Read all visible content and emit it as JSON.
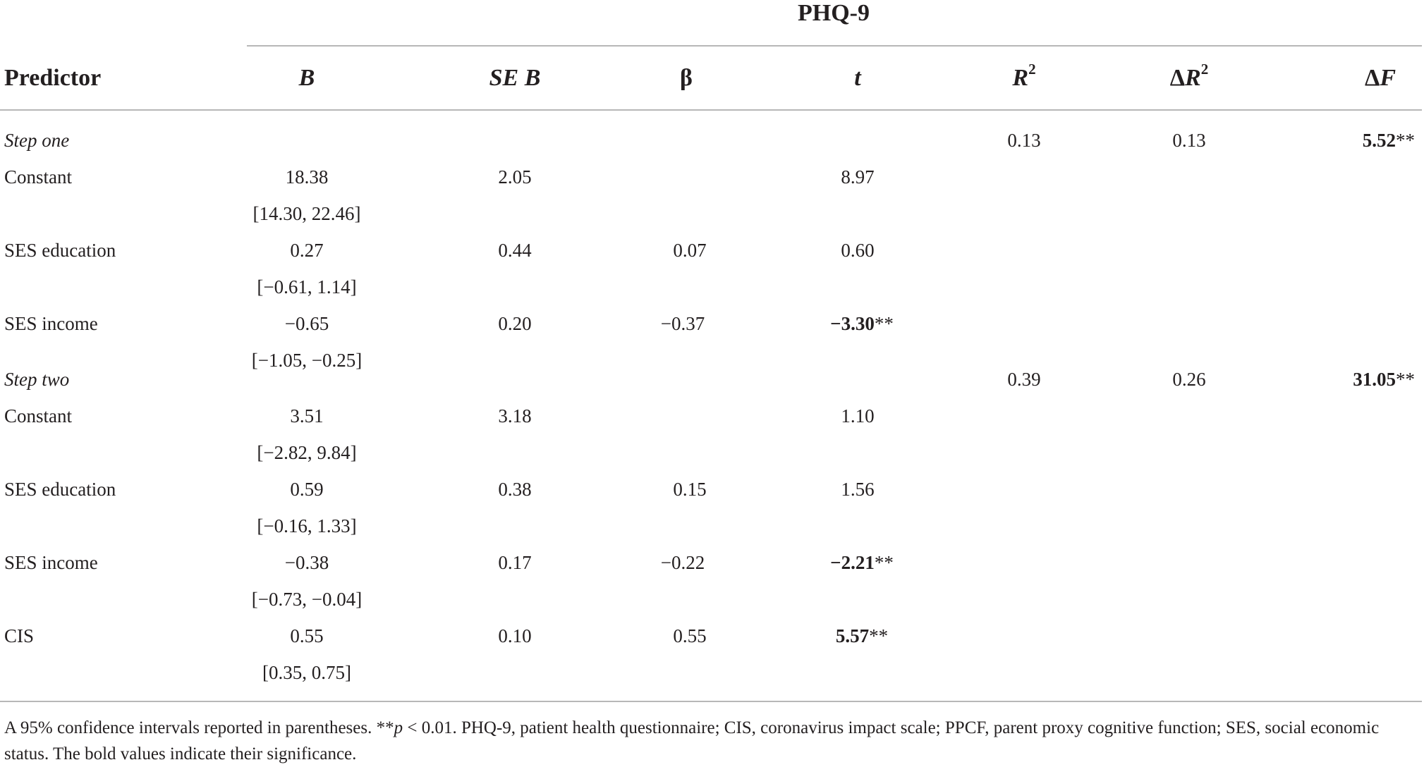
{
  "table": {
    "group_header": "PHQ-9",
    "columns": {
      "predictor": "Predictor",
      "B": "B",
      "seB": "SE B",
      "beta": "β",
      "t": "t",
      "r2_base": "R",
      "r2_sup": "2",
      "dr2_delta": "Δ",
      "dr2_base": "R",
      "dr2_sup": "2",
      "df_delta": "Δ",
      "df_base": "F"
    },
    "rows": [
      {
        "predictor": "Step one",
        "r2": "0.13",
        "dr2": "0.13",
        "df": "5.52",
        "df_sig": "**"
      },
      {
        "predictor": "Constant",
        "B": "18.38",
        "seB": "2.05",
        "t": "8.97"
      },
      {
        "B_ci": "[14.30, 22.46]"
      },
      {
        "predictor": "SES education",
        "B": "0.27",
        "seB": "0.44",
        "beta": "0.07",
        "t": "0.60"
      },
      {
        "B_ci": "[−0.61, 1.14]"
      },
      {
        "predictor": "SES income",
        "B": "−0.65",
        "seB": "0.20",
        "beta": "−0.37",
        "t": "−3.30",
        "t_sig": "**"
      },
      {
        "B_ci": "[−1.05, −0.25]"
      },
      {
        "predictor": "Step two",
        "r2": "0.39",
        "dr2": "0.26",
        "df": "31.05",
        "df_sig": "**"
      },
      {
        "predictor": "Constant",
        "B": "3.51",
        "seB": "3.18",
        "t": "1.10"
      },
      {
        "B_ci": "[−2.82, 9.84]"
      },
      {
        "predictor": "SES education",
        "B": "0.59",
        "seB": "0.38",
        "beta": "0.15",
        "t": "1.56"
      },
      {
        "B_ci": "[−0.16, 1.33]"
      },
      {
        "predictor": "SES income",
        "B": "−0.38",
        "seB": "0.17",
        "beta": "−0.22",
        "t": "−2.21",
        "t_sig": "**"
      },
      {
        "B_ci": "[−0.73, −0.04]"
      },
      {
        "predictor": "CIS",
        "B": "0.55",
        "seB": "0.10",
        "beta": "0.55",
        "t": "5.57",
        "t_sig": "**"
      },
      {
        "B_ci": "[0.35, 0.75]"
      }
    ],
    "note": {
      "part1": "A 95% confidence intervals reported in parentheses. **",
      "p": "p",
      "part2": " < 0.01. PHQ-9, patient health questionnaire; CIS, coronavirus impact scale; PPCF, parent proxy cognitive function; SES, social economic status. The bold values indicate their significance."
    }
  }
}
